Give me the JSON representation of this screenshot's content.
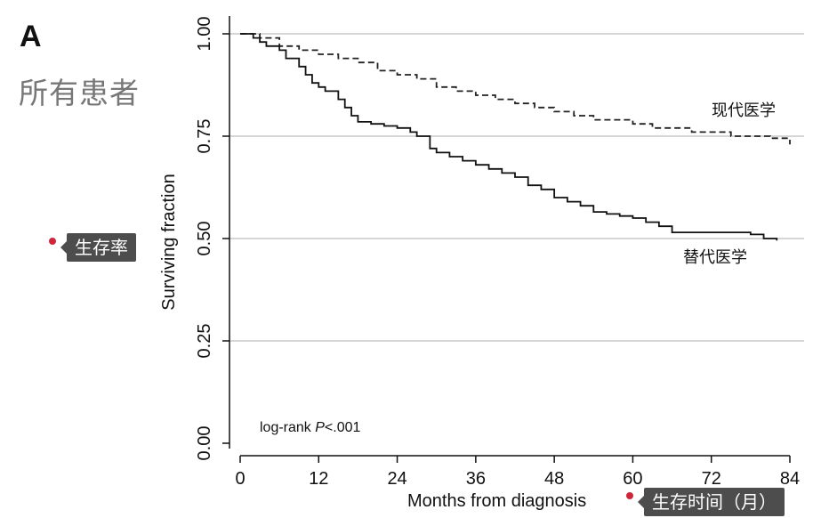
{
  "panel_label": "A",
  "subtitle": "所有患者",
  "annotations": {
    "y_callout": "生存率",
    "x_callout": "生存时间（月）",
    "dot_color": "#d0263a",
    "callout_bg": "#4d4d4d"
  },
  "chart_data": {
    "type": "line",
    "xlabel": "Months from diagnosis",
    "ylabel": "Surviving fraction",
    "xlim": [
      0,
      84
    ],
    "ylim": [
      0,
      1
    ],
    "x_ticks": [
      "0",
      "12",
      "24",
      "36",
      "48",
      "60",
      "72",
      "84"
    ],
    "y_ticks": [
      "0.00",
      "0.25",
      "0.50",
      "0.75",
      "1.00"
    ],
    "grid": "horizontal",
    "annotation": {
      "prefix": "log-rank ",
      "italic": "P",
      "suffix": "<.001"
    },
    "series": [
      {
        "name": "现代医学",
        "style": "dashed",
        "color": "#222222",
        "points": [
          [
            0,
            1.0
          ],
          [
            3,
            0.99
          ],
          [
            6,
            0.97
          ],
          [
            9,
            0.96
          ],
          [
            12,
            0.95
          ],
          [
            15,
            0.94
          ],
          [
            18,
            0.93
          ],
          [
            21,
            0.91
          ],
          [
            24,
            0.9
          ],
          [
            27,
            0.89
          ],
          [
            30,
            0.87
          ],
          [
            33,
            0.86
          ],
          [
            36,
            0.85
          ],
          [
            39,
            0.84
          ],
          [
            42,
            0.83
          ],
          [
            45,
            0.82
          ],
          [
            48,
            0.81
          ],
          [
            51,
            0.8
          ],
          [
            54,
            0.79
          ],
          [
            57,
            0.79
          ],
          [
            60,
            0.78
          ],
          [
            63,
            0.77
          ],
          [
            66,
            0.77
          ],
          [
            69,
            0.76
          ],
          [
            72,
            0.76
          ],
          [
            75,
            0.75
          ],
          [
            78,
            0.75
          ],
          [
            81,
            0.745
          ],
          [
            84,
            0.73
          ]
        ]
      },
      {
        "name": "替代医学",
        "style": "solid",
        "color": "#111111",
        "points": [
          [
            0,
            1.0
          ],
          [
            2,
            0.99
          ],
          [
            3,
            0.98
          ],
          [
            4,
            0.97
          ],
          [
            6,
            0.96
          ],
          [
            7,
            0.94
          ],
          [
            9,
            0.92
          ],
          [
            10,
            0.9
          ],
          [
            11,
            0.88
          ],
          [
            12,
            0.87
          ],
          [
            13,
            0.86
          ],
          [
            15,
            0.84
          ],
          [
            16,
            0.82
          ],
          [
            17,
            0.8
          ],
          [
            18,
            0.785
          ],
          [
            20,
            0.78
          ],
          [
            22,
            0.775
          ],
          [
            24,
            0.77
          ],
          [
            26,
            0.76
          ],
          [
            27,
            0.75
          ],
          [
            29,
            0.72
          ],
          [
            30,
            0.71
          ],
          [
            32,
            0.7
          ],
          [
            34,
            0.69
          ],
          [
            36,
            0.68
          ],
          [
            38,
            0.67
          ],
          [
            40,
            0.66
          ],
          [
            42,
            0.65
          ],
          [
            44,
            0.63
          ],
          [
            46,
            0.62
          ],
          [
            48,
            0.6
          ],
          [
            50,
            0.59
          ],
          [
            52,
            0.58
          ],
          [
            54,
            0.565
          ],
          [
            56,
            0.56
          ],
          [
            58,
            0.555
          ],
          [
            60,
            0.55
          ],
          [
            62,
            0.54
          ],
          [
            64,
            0.53
          ],
          [
            66,
            0.515
          ],
          [
            68,
            0.515
          ],
          [
            72,
            0.515
          ],
          [
            75,
            0.515
          ],
          [
            78,
            0.51
          ],
          [
            80,
            0.5
          ],
          [
            82,
            0.495
          ]
        ]
      }
    ]
  }
}
